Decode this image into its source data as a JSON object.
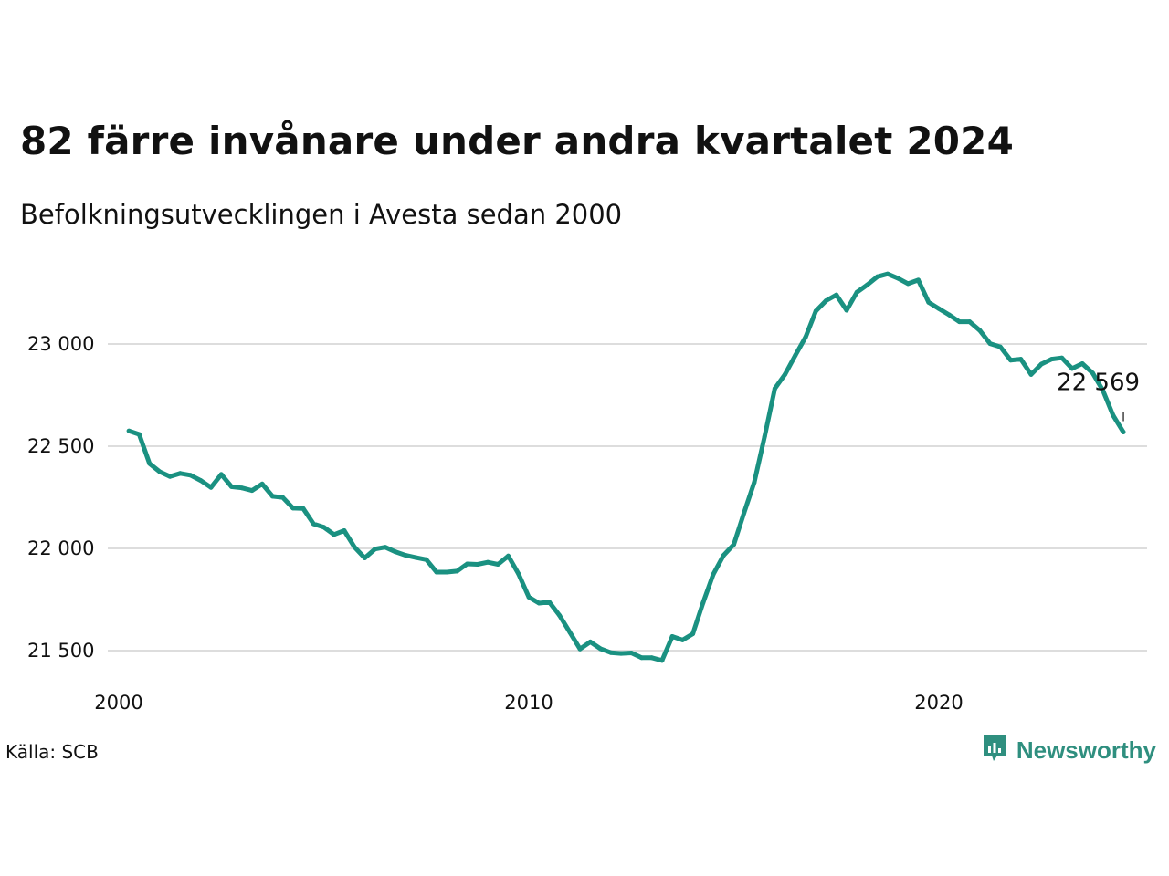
{
  "header": {
    "title": "82 färre invånare under andra kvartalet 2024",
    "subtitle": "Befolkningsutvecklingen i Avesta sedan 2000"
  },
  "footer": {
    "source": "Källa: SCB",
    "brand": "Newsworthy"
  },
  "colors": {
    "line": "#1a9181",
    "grid": "#dddddd",
    "brand": "#2f8f7f"
  },
  "chart_data": {
    "type": "line",
    "title": "82 färre invånare under andra kvartalet 2024",
    "subtitle": "Befolkningsutvecklingen i Avesta sedan 2000",
    "xlabel": "",
    "ylabel": "",
    "xlim": [
      2000,
      2025
    ],
    "ylim": [
      21400,
      23400
    ],
    "grid": true,
    "x_ticks": [
      2000,
      2010,
      2020
    ],
    "x_tick_labels": [
      "2000",
      "2010",
      "2020"
    ],
    "y_ticks": [
      21500,
      22000,
      22500,
      23000
    ],
    "y_tick_labels": [
      "21 500",
      "22 000",
      "22 500",
      "23 000"
    ],
    "end_label": "22 569",
    "series": [
      {
        "x": [
          2000.25,
          2000.5,
          2000.75,
          2001.0,
          2001.25,
          2001.5,
          2001.75,
          2002.0,
          2002.25,
          2002.5,
          2002.75,
          2003.0,
          2003.25,
          2003.5,
          2003.75,
          2004.0,
          2004.25,
          2004.5,
          2004.75,
          2005.0,
          2005.25,
          2005.5,
          2005.75,
          2006.0,
          2006.25,
          2006.5,
          2006.75,
          2007.0,
          2007.25,
          2007.5,
          2007.75,
          2008.0,
          2008.25,
          2008.5,
          2008.75,
          2009.0,
          2009.25,
          2009.5,
          2009.75,
          2010.0,
          2010.25,
          2010.5,
          2010.75,
          2011.0,
          2011.25,
          2011.5,
          2011.75,
          2012.0,
          2012.25,
          2012.5,
          2012.75,
          2013.0,
          2013.25,
          2013.5,
          2013.75,
          2014.0,
          2014.25,
          2014.5,
          2014.75,
          2015.0,
          2015.25,
          2015.5,
          2015.75,
          2016.0,
          2016.25,
          2016.5,
          2016.75,
          2017.0,
          2017.25,
          2017.5,
          2017.75,
          2018.0,
          2018.25,
          2018.5,
          2018.75,
          2019.0,
          2019.25,
          2019.5,
          2019.75,
          2020.0,
          2020.25,
          2020.5,
          2020.75,
          2021.0,
          2021.25,
          2021.5,
          2021.75,
          2022.0,
          2022.25,
          2022.5,
          2022.75,
          2023.0,
          2023.25,
          2023.5,
          2023.75,
          2024.0,
          2024.25,
          2024.5
        ],
        "values": [
          22575,
          22558,
          22415,
          22375,
          22352,
          22367,
          22358,
          22332,
          22298,
          22362,
          22302,
          22296,
          22283,
          22315,
          22255,
          22249,
          22197,
          22195,
          22120,
          22104,
          22068,
          22087,
          22006,
          21953,
          21997,
          22006,
          21983,
          21966,
          21955,
          21945,
          21884,
          21884,
          21889,
          21924,
          21922,
          21932,
          21922,
          21963,
          21875,
          21762,
          21732,
          21737,
          21672,
          21590,
          21508,
          21543,
          21509,
          21490,
          21486,
          21489,
          21465,
          21465,
          21452,
          21569,
          21552,
          21582,
          21734,
          21873,
          21966,
          22019,
          22174,
          22323,
          22547,
          22782,
          22852,
          22945,
          23034,
          23161,
          23212,
          23240,
          23165,
          23253,
          23289,
          23329,
          23343,
          23322,
          23295,
          23313,
          23204,
          23173,
          23143,
          23109,
          23109,
          23066,
          23002,
          22986,
          22921,
          22926,
          22851,
          22902,
          22926,
          22932,
          22880,
          22904,
          22858,
          22773,
          22651,
          22569
        ]
      }
    ]
  }
}
